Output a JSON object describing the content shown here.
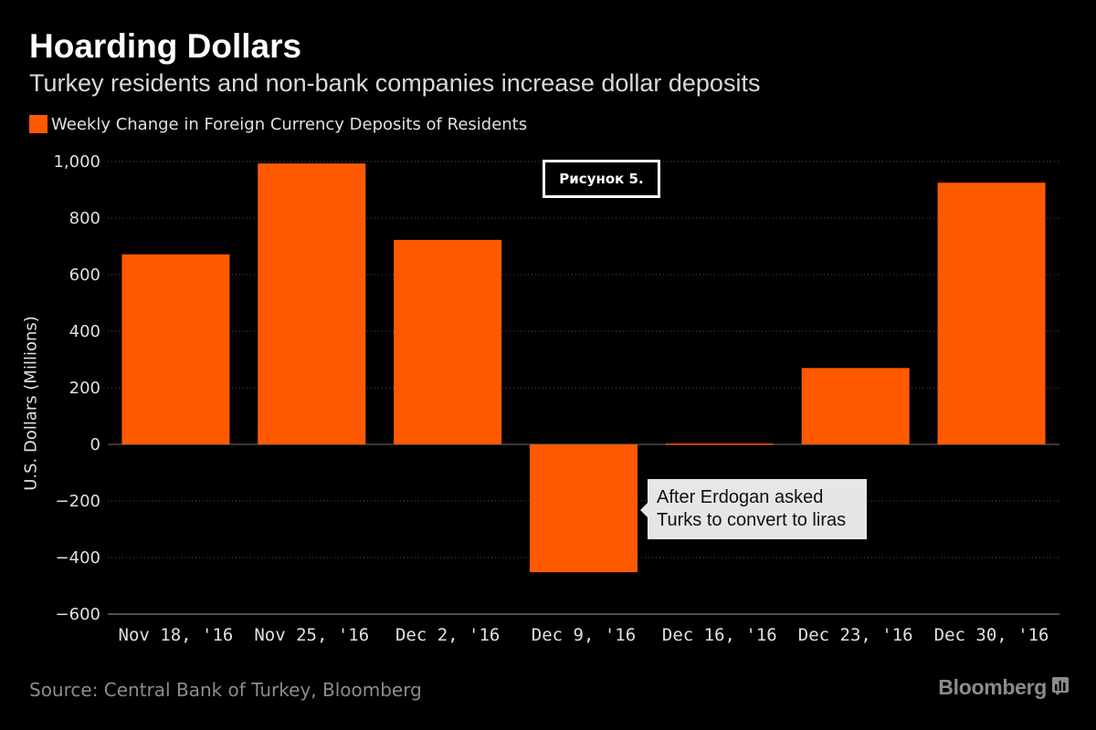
{
  "header": {
    "title": "Hoarding Dollars",
    "subtitle": "Turkey residents and non-bank companies increase dollar deposits"
  },
  "figure_label": "Рисунок 5.",
  "annotation": {
    "lines": [
      "After Erdogan asked",
      "Turks to convert to liras"
    ]
  },
  "footer": {
    "source": "Source: Central Bank of Turkey, Bloomberg",
    "brand": "Bloomberg"
  },
  "colors": {
    "bar": "#ff5a00",
    "background": "#000000",
    "grid": "#555555",
    "annotation_bg": "#e6e6e6"
  },
  "icons": {
    "brand_icon": "bar-chart-icon"
  },
  "chart_data": {
    "type": "bar",
    "categories": [
      "Nov 18, '16",
      "Nov 25, '16",
      "Dec 2, '16",
      "Dec 9, '16",
      "Dec 16, '16",
      "Dec 23, '16",
      "Dec 30, '16"
    ],
    "series": [
      {
        "name": "Weekly Change in Foreign Currency Deposits of Residents",
        "values": [
          672,
          993,
          723,
          -452,
          3,
          270,
          925
        ]
      }
    ],
    "ylabel": "U.S. Dollars (Millions)",
    "ylim": [
      -600,
      1000
    ],
    "yticks": [
      1000,
      800,
      600,
      400,
      200,
      0,
      -200,
      -400,
      -600
    ],
    "ytick_labels": [
      "1,000",
      "800",
      "600",
      "400",
      "200",
      "0",
      "−200",
      "−400",
      "−600"
    ],
    "grid": true,
    "legend_position": "top-left"
  }
}
